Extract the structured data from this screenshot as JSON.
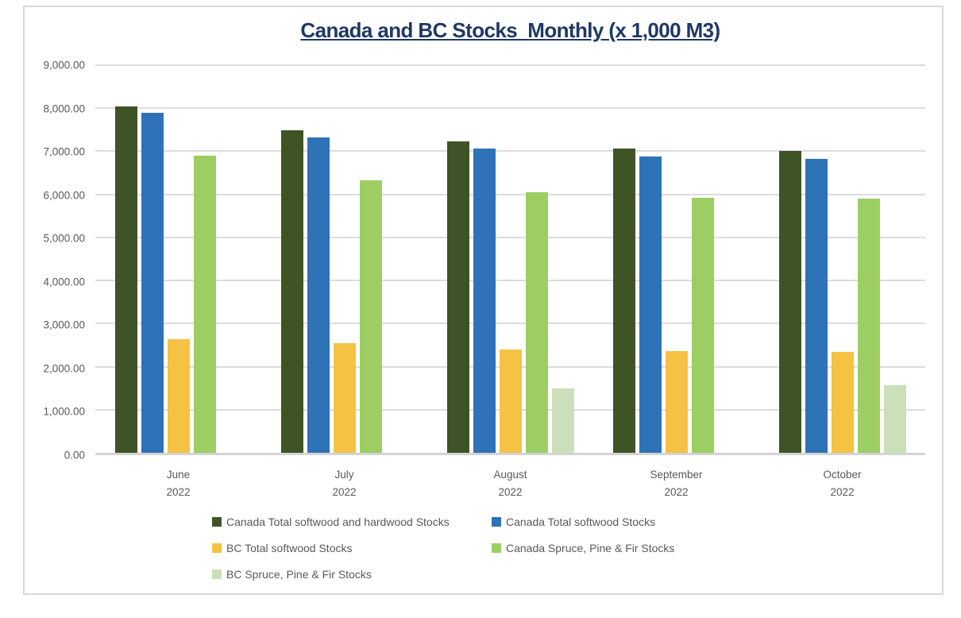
{
  "colors": {
    "frame_border": "#d9d9d9",
    "gridline": "#dcdcdc",
    "axis_line": "#d3d3d3",
    "axis_text": "#595959",
    "title_text": "#1f3864",
    "background": "#ffffff"
  },
  "chart_data": {
    "type": "bar",
    "title": "Canada and BC Stocks  Monthly (x 1,000 M3)",
    "xlabel": "",
    "ylabel": "",
    "ylim": [
      0,
      9000
    ],
    "grid": true,
    "legend_position": "bottom",
    "y_ticks": [
      "0.00",
      "1,000.00",
      "2,000.00",
      "3,000.00",
      "4,000.00",
      "5,000.00",
      "6,000.00",
      "7,000.00",
      "8,000.00",
      "9,000.00"
    ],
    "categories": [
      {
        "month": "June",
        "year": "2022"
      },
      {
        "month": "July",
        "year": "2022"
      },
      {
        "month": "August",
        "year": "2022"
      },
      {
        "month": "September",
        "year": "2022"
      },
      {
        "month": "October",
        "year": "2022"
      }
    ],
    "series": [
      {
        "name": "Canada Total softwood and hardwood Stocks",
        "color": "#3e5426",
        "values": [
          8040,
          7490,
          7230,
          7060,
          7010
        ]
      },
      {
        "name": "Canada Total softwood Stocks",
        "color": "#2e72b8",
        "values": [
          7890,
          7320,
          7060,
          6880,
          6830
        ]
      },
      {
        "name": "BC Total softwood Stocks",
        "color": "#f5c243",
        "values": [
          2640,
          2550,
          2390,
          2370,
          2340
        ]
      },
      {
        "name": "Canada Spruce, Pine & Fir Stocks",
        "color": "#9cce63",
        "values": [
          6890,
          6320,
          6050,
          5920,
          5910
        ]
      },
      {
        "name": "BC Spruce, Pine & Fir Stocks",
        "color": "#cbdfb9",
        "values": [
          null,
          null,
          1500,
          null,
          1560
        ]
      }
    ],
    "legend_rows": [
      [
        0,
        1
      ],
      [
        2,
        3
      ],
      [
        4
      ]
    ]
  }
}
